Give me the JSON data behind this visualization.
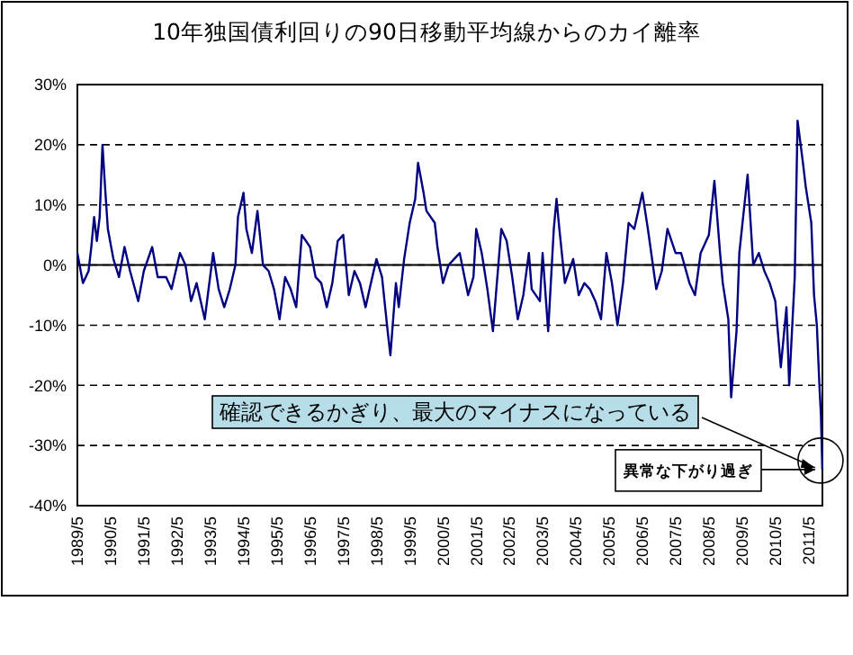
{
  "chart_data": {
    "type": "line",
    "title": "10年独国債利回りの90日移動平均線からのカイ離率",
    "x": [
      "1989-05",
      "1989-07",
      "1989-09",
      "1989-10",
      "1989-11",
      "1989-12",
      "1990-01",
      "1990-02",
      "1990-03",
      "1990-04",
      "1990-06",
      "1990-08",
      "1990-10",
      "1990-12",
      "1991-03",
      "1991-05",
      "1991-08",
      "1991-10",
      "1992-01",
      "1992-03",
      "1992-06",
      "1992-08",
      "1992-10",
      "1992-12",
      "1993-03",
      "1993-06",
      "1993-08",
      "1993-10",
      "1993-12",
      "1994-02",
      "1994-03",
      "1994-05",
      "1994-06",
      "1994-08",
      "1994-10",
      "1994-12",
      "1995-02",
      "1995-04",
      "1995-06",
      "1995-08",
      "1995-10",
      "1995-12",
      "1996-02",
      "1996-05",
      "1996-07",
      "1996-09",
      "1996-11",
      "1997-01",
      "1997-03",
      "1997-05",
      "1997-07",
      "1997-09",
      "1997-11",
      "1998-01",
      "1998-03",
      "1998-05",
      "1998-07",
      "1998-09",
      "1998-10",
      "1998-12",
      "1999-01",
      "1999-03",
      "1999-05",
      "1999-07",
      "1999-08",
      "1999-10",
      "1999-11",
      "2000-02",
      "2000-03",
      "2000-05",
      "2000-07",
      "2000-09",
      "2000-11",
      "2001-02",
      "2001-04",
      "2001-05",
      "2001-07",
      "2001-09",
      "2001-11",
      "2002-02",
      "2002-04",
      "2002-06",
      "2002-08",
      "2002-10",
      "2002-12",
      "2003-01",
      "2003-04",
      "2003-05",
      "2003-07",
      "2003-09",
      "2003-10",
      "2003-11",
      "2004-01",
      "2004-04",
      "2004-06",
      "2004-08",
      "2004-10",
      "2004-12",
      "2005-02",
      "2005-04",
      "2005-06",
      "2005-08",
      "2005-10",
      "2005-12",
      "2006-02",
      "2006-05",
      "2006-07",
      "2006-10",
      "2006-12",
      "2007-02",
      "2007-05",
      "2007-07",
      "2007-10",
      "2007-12",
      "2008-02",
      "2008-05",
      "2008-07",
      "2008-09",
      "2008-10",
      "2008-12",
      "2009-01",
      "2009-03",
      "2009-04",
      "2009-07",
      "2009-09",
      "2009-11",
      "2010-01",
      "2010-03",
      "2010-05",
      "2010-07",
      "2010-09",
      "2010-10",
      "2010-12",
      "2011-01",
      "2011-03",
      "2011-04",
      "2011-06",
      "2011-07",
      "2011-08",
      "2011-09-01",
      "2011-09-15",
      "2011-09-30"
    ],
    "series": [
      {
        "color": "#000080",
        "values": [
          2,
          -3,
          -1,
          3,
          8,
          4,
          8,
          20,
          13,
          6,
          1,
          -2,
          3,
          -1,
          -6,
          -1,
          3,
          -2,
          -2,
          -4,
          2,
          0,
          -6,
          -3,
          -9,
          2,
          -4,
          -7,
          -4,
          0,
          8,
          12,
          6,
          2,
          9,
          0,
          -1,
          -4,
          -9,
          -2,
          -4,
          -7,
          5,
          3,
          -2,
          -3,
          -7,
          -3,
          4,
          5,
          -5,
          -1,
          -3,
          -7,
          -3,
          1,
          -2,
          -11,
          -15,
          -3,
          -7,
          1,
          7,
          11,
          17,
          12,
          9,
          7,
          3,
          -3,
          0,
          1,
          2,
          -5,
          -2,
          6,
          2,
          -4,
          -11,
          6,
          4,
          -2,
          -9,
          -5,
          2,
          -4,
          -6,
          2,
          -11,
          6,
          11,
          6,
          -3,
          1,
          -5,
          -3,
          -4,
          -6,
          -9,
          2,
          -3,
          -10,
          -3,
          7,
          6,
          12,
          6,
          -4,
          -1,
          6,
          2,
          2,
          -3,
          -5,
          2,
          5,
          14,
          2,
          -3,
          -9,
          -22,
          -11,
          2,
          15,
          0,
          2,
          -1,
          -3,
          -6,
          -17,
          -7,
          -20,
          -2,
          24,
          17,
          13,
          7,
          -5,
          -10,
          -21,
          -25,
          -34
        ]
      }
    ],
    "xlim": [
      "1989-05",
      "2011-10"
    ],
    "xticks": [
      {
        "value": "1989-05",
        "label": "1989/5"
      },
      {
        "value": "1990-05",
        "label": "1990/5"
      },
      {
        "value": "1991-05",
        "label": "1991/5"
      },
      {
        "value": "1992-05",
        "label": "1992/5"
      },
      {
        "value": "1993-05",
        "label": "1993/5"
      },
      {
        "value": "1994-05",
        "label": "1994/5"
      },
      {
        "value": "1995-05",
        "label": "1995/5"
      },
      {
        "value": "1996-05",
        "label": "1996/5"
      },
      {
        "value": "1997-05",
        "label": "1997/5"
      },
      {
        "value": "1998-05",
        "label": "1998/5"
      },
      {
        "value": "1999-05",
        "label": "1999/5"
      },
      {
        "value": "2000-05",
        "label": "2000/5"
      },
      {
        "value": "2001-05",
        "label": "2001/5"
      },
      {
        "value": "2002-05",
        "label": "2002/5"
      },
      {
        "value": "2003-05",
        "label": "2003/5"
      },
      {
        "value": "2004-05",
        "label": "2004/5"
      },
      {
        "value": "2005-05",
        "label": "2005/5"
      },
      {
        "value": "2006-05",
        "label": "2006/5"
      },
      {
        "value": "2007-05",
        "label": "2007/5"
      },
      {
        "value": "2008-05",
        "label": "2008/5"
      },
      {
        "value": "2009-05",
        "label": "2009/5"
      },
      {
        "value": "2010-05",
        "label": "2010/5"
      },
      {
        "value": "2011-05",
        "label": "2011/5"
      }
    ],
    "ylim": [
      -40,
      30
    ],
    "yticks": [
      {
        "value": -40,
        "label": "-40%"
      },
      {
        "value": -30,
        "label": "-30%"
      },
      {
        "value": -20,
        "label": "-20%"
      },
      {
        "value": -10,
        "label": "-10%"
      },
      {
        "value": 0,
        "label": "0%"
      },
      {
        "value": 10,
        "label": "10%"
      },
      {
        "value": 20,
        "label": "20%"
      },
      {
        "value": 30,
        "label": "30%"
      }
    ],
    "grid": "y",
    "marker": "none",
    "line_style": "solid",
    "annotations": [
      {
        "text": "確認できるかぎり、最大のマイナスになっている",
        "x": "2011-09-30",
        "y": -34
      },
      {
        "text": "異常な下がり過ぎ",
        "x": "2011-09-30",
        "y": -34
      }
    ]
  }
}
